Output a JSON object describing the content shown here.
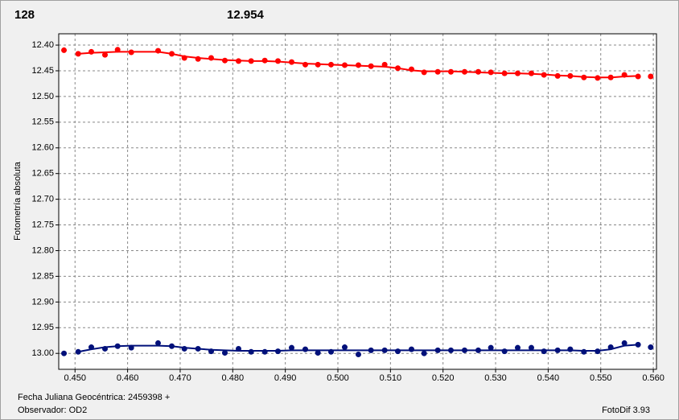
{
  "chart_data": {
    "type": "line",
    "annotations": [
      {
        "text": "128",
        "color": "#ff0000"
      },
      {
        "text": "12.954",
        "color": "#00209f"
      }
    ],
    "y_label": "Fotometría absoluta",
    "footer": [
      "Fecha Juliana Geocéntrica: 2459398 +",
      "Observador: OD2"
    ],
    "credit": "FotoDif 3.93",
    "grid": true,
    "y_inverted": true,
    "xlim": [
      0.4469,
      0.5606
    ],
    "ylim": [
      12.378,
      13.031
    ],
    "xticks": [
      {
        "value": 0.45,
        "label": "0.450"
      },
      {
        "value": 0.46,
        "label": "0.460"
      },
      {
        "value": 0.47,
        "label": "0.470"
      },
      {
        "value": 0.48,
        "label": "0.480"
      },
      {
        "value": 0.49,
        "label": "0.490"
      },
      {
        "value": 0.5,
        "label": "0.500"
      },
      {
        "value": 0.51,
        "label": "0.510"
      },
      {
        "value": 0.52,
        "label": "0.520"
      },
      {
        "value": 0.53,
        "label": "0.530"
      },
      {
        "value": 0.54,
        "label": "0.540"
      },
      {
        "value": 0.55,
        "label": "0.550"
      },
      {
        "value": 0.56,
        "label": "0.560"
      }
    ],
    "yticks": [
      {
        "value": 12.4,
        "label": "12.40"
      },
      {
        "value": 12.45,
        "label": "12.45"
      },
      {
        "value": 12.5,
        "label": "12.50"
      },
      {
        "value": 12.55,
        "label": "12.55"
      },
      {
        "value": 12.6,
        "label": "12.60"
      },
      {
        "value": 12.65,
        "label": "12.65"
      },
      {
        "value": 12.7,
        "label": "12.70"
      },
      {
        "value": 12.75,
        "label": "12.75"
      },
      {
        "value": 12.8,
        "label": "12.80"
      },
      {
        "value": 12.85,
        "label": "12.85"
      },
      {
        "value": 12.9,
        "label": "12.90"
      },
      {
        "value": 12.95,
        "label": "12.95"
      },
      {
        "value": 13.0,
        "label": "13.00"
      }
    ],
    "x": [
      0.4479,
      0.4506,
      0.4531,
      0.4557,
      0.4581,
      0.4607,
      0.4658,
      0.4684,
      0.4708,
      0.4734,
      0.4759,
      0.4785,
      0.4811,
      0.4835,
      0.4861,
      0.4886,
      0.4912,
      0.4938,
      0.4962,
      0.4987,
      0.5013,
      0.5039,
      0.5063,
      0.5089,
      0.5114,
      0.514,
      0.5164,
      0.519,
      0.5215,
      0.5241,
      0.5267,
      0.5291,
      0.5317,
      0.5342,
      0.5368,
      0.5392,
      0.5418,
      0.5442,
      0.5468,
      0.5494,
      0.5519,
      0.5545,
      0.5571,
      0.5595
    ],
    "series": [
      {
        "color": "#ff0000",
        "values": [
          12.41,
          12.417,
          12.413,
          12.419,
          12.409,
          12.414,
          12.411,
          12.417,
          12.425,
          12.427,
          12.425,
          12.43,
          12.431,
          12.431,
          12.43,
          12.431,
          12.433,
          12.438,
          12.438,
          12.438,
          12.439,
          12.439,
          12.441,
          12.438,
          12.445,
          12.447,
          12.453,
          12.452,
          12.452,
          12.452,
          12.452,
          12.453,
          12.455,
          12.455,
          12.455,
          12.458,
          12.46,
          12.46,
          12.463,
          12.464,
          12.463,
          12.458,
          12.461,
          12.461
        ],
        "fit": [
          null,
          12.417,
          12.415,
          12.414,
          12.413,
          12.413,
          12.413,
          12.417,
          12.422,
          12.425,
          12.427,
          12.429,
          12.43,
          12.431,
          12.431,
          12.432,
          12.434,
          12.436,
          12.437,
          12.438,
          12.439,
          12.44,
          12.441,
          12.442,
          12.445,
          12.449,
          12.451,
          12.451,
          12.451,
          12.452,
          12.453,
          12.454,
          12.455,
          12.455,
          12.456,
          12.457,
          12.459,
          12.46,
          12.462,
          12.463,
          12.463,
          12.461,
          12.46,
          null
        ]
      },
      {
        "color": "#00107a",
        "values": [
          13.0,
          12.997,
          12.988,
          12.991,
          12.986,
          12.989,
          12.98,
          12.986,
          12.991,
          12.991,
          12.996,
          12.999,
          12.991,
          12.997,
          12.997,
          12.996,
          12.989,
          12.992,
          12.999,
          12.997,
          12.988,
          13.002,
          12.994,
          12.994,
          12.996,
          12.992,
          13.0,
          12.994,
          12.994,
          12.994,
          12.994,
          12.989,
          12.996,
          12.989,
          12.989,
          12.996,
          12.994,
          12.992,
          12.997,
          12.996,
          12.988,
          12.98,
          12.983,
          12.988
        ],
        "fit": [
          null,
          12.997,
          12.992,
          12.988,
          12.986,
          12.985,
          12.985,
          12.986,
          12.989,
          12.991,
          12.993,
          12.994,
          12.995,
          12.995,
          12.995,
          12.995,
          12.994,
          12.994,
          12.994,
          12.994,
          12.994,
          12.994,
          12.994,
          12.994,
          12.994,
          12.994,
          12.994,
          12.994,
          12.994,
          12.994,
          12.994,
          12.994,
          12.994,
          12.994,
          12.994,
          12.994,
          12.994,
          12.994,
          12.995,
          12.995,
          12.992,
          12.985,
          12.983,
          null
        ]
      }
    ]
  }
}
